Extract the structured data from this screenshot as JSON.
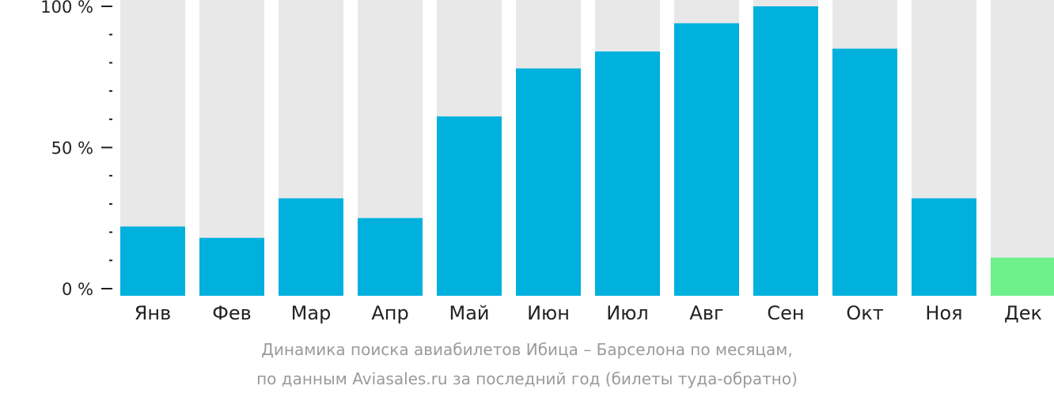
{
  "chart_data": {
    "type": "bar",
    "categories": [
      "Янв",
      "Фев",
      "Мар",
      "Апр",
      "Май",
      "Июн",
      "Июл",
      "Авг",
      "Сен",
      "Окт",
      "Ноя",
      "Дек"
    ],
    "values": [
      22,
      18,
      32,
      25,
      61,
      78,
      84,
      94,
      100,
      85,
      32,
      11
    ],
    "highlight_index": 11,
    "ylim": [
      0,
      100
    ],
    "yticks": [
      0,
      50,
      100
    ],
    "ytick_labels": [
      "0 %",
      "50 %",
      "100 %"
    ],
    "minor_tick_step": 10,
    "grid": false,
    "colors": {
      "bar": "#00b0dd",
      "bar_highlight": "#6ef08a",
      "track": "#e8e8e8",
      "axis": "#222222"
    },
    "caption": [
      "Динамика поиска авиабилетов Ибица – Барселона по месяцам,",
      "по данным Aviasales.ru за последний год (билеты туда-обратно)"
    ]
  }
}
